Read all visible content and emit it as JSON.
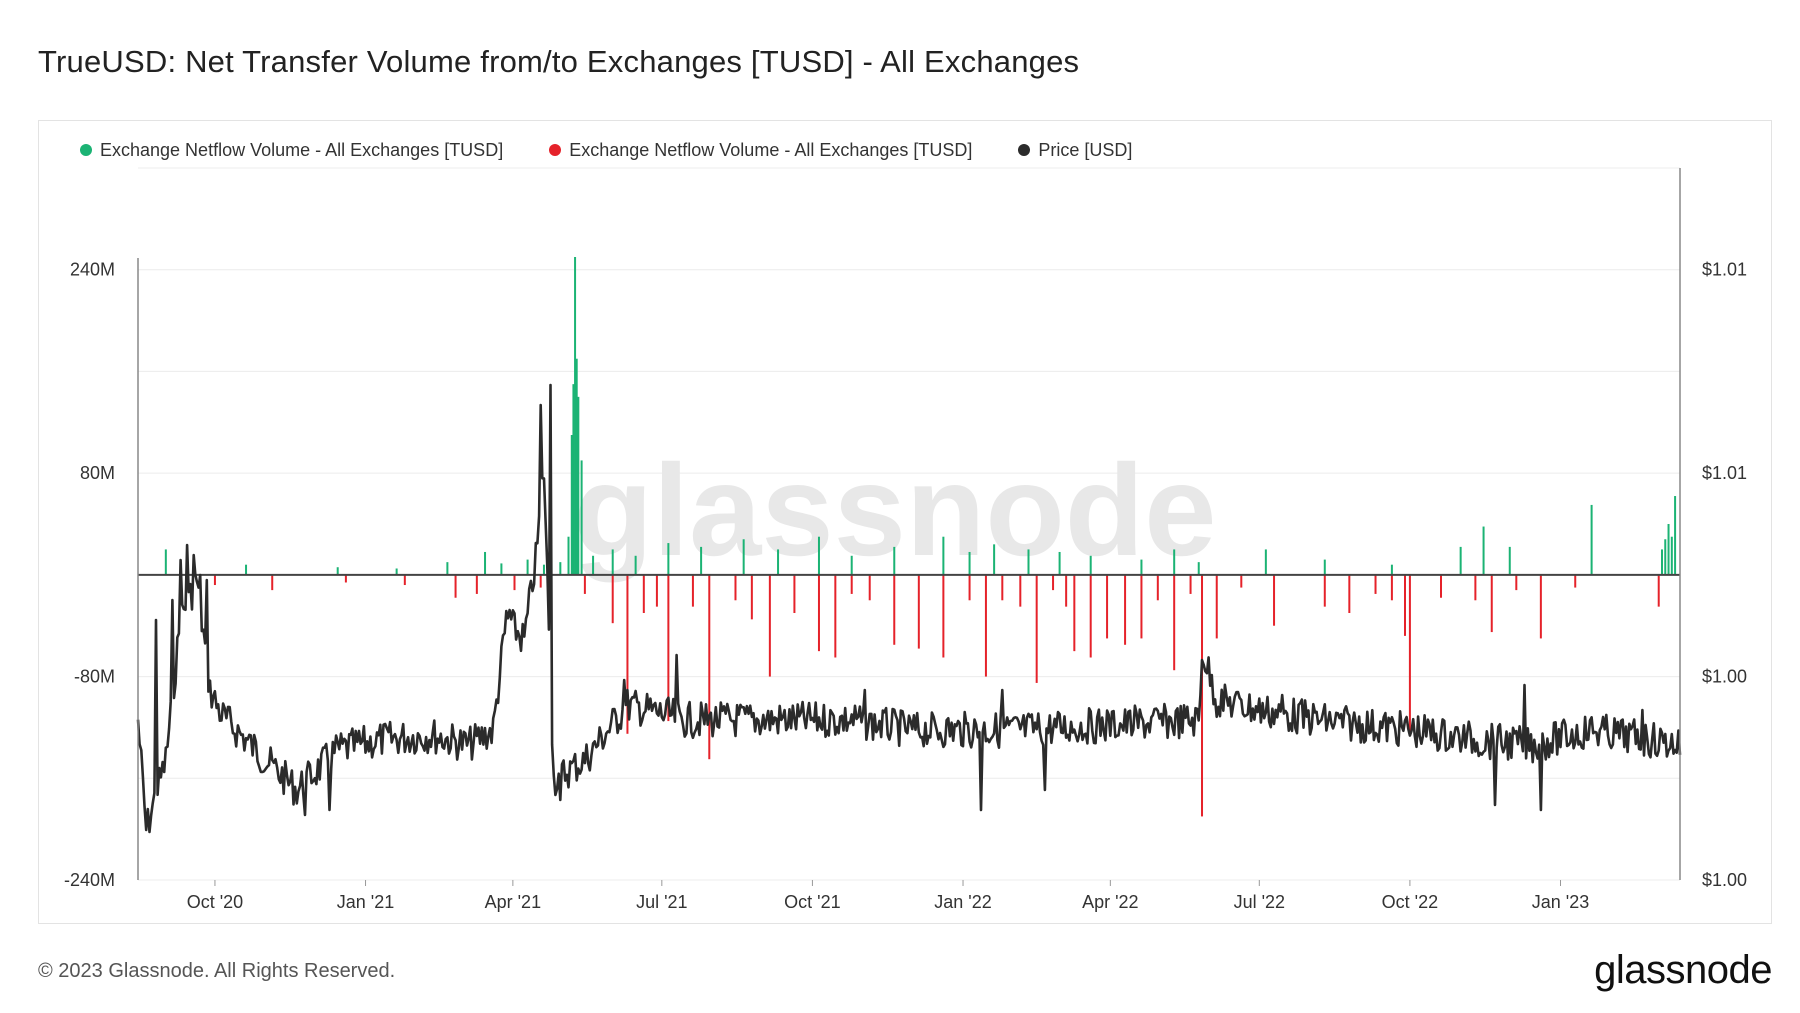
{
  "title": "TrueUSD: Net Transfer Volume from/to Exchanges [TUSD] - All Exchanges",
  "legend": [
    {
      "label": "Exchange Netflow Volume - All Exchanges [TUSD]",
      "color": "#1bb374"
    },
    {
      "label": "Exchange Netflow Volume - All Exchanges [TUSD]",
      "color": "#e5222a"
    },
    {
      "label": "Price [USD]",
      "color": "#2b2b2b"
    }
  ],
  "watermark": "glassnode",
  "footer": {
    "copyright": "© 2023 Glassnode. All Rights Reserved.",
    "logo": "glassnode"
  },
  "chart_data": {
    "type": "bar",
    "title": "TrueUSD: Net Transfer Volume from/to Exchanges [TUSD] - All Exchanges",
    "x_tick_labels": [
      "Oct '20",
      "Jan '21",
      "Apr '21",
      "Jul '21",
      "Oct '21",
      "Jan '22",
      "Apr '22",
      "Jul '22",
      "Oct '22",
      "Jan '23"
    ],
    "x_tick_dates": [
      "2020-10-01",
      "2021-01-01",
      "2021-04-01",
      "2021-07-01",
      "2021-10-01",
      "2022-01-01",
      "2022-04-01",
      "2022-07-01",
      "2022-10-01",
      "2023-01-01"
    ],
    "x_range": [
      "2020-08-15",
      "2023-03-15"
    ],
    "left_axis": {
      "tick_labels": [
        "240M",
        "80M",
        "-80M",
        "-240M"
      ],
      "tick_values": [
        240000000,
        80000000,
        -80000000,
        -240000000
      ],
      "range": [
        -240000000,
        320000000
      ],
      "unit": "TUSD"
    },
    "right_axis": {
      "tick_labels": [
        "$1.01",
        "$1.01",
        "$1.00",
        "$1.00"
      ]
    },
    "grid": true,
    "legend_position": "top-left",
    "series": [
      {
        "name": "Exchange Netflow Volume - All Exchanges [TUSD]",
        "color": "#1bb374",
        "kind": "bar",
        "note_units": "TUSD",
        "points": [
          [
            "2020-09-01",
            20000000
          ],
          [
            "2020-10-20",
            8000000
          ],
          [
            "2020-12-15",
            6000000
          ],
          [
            "2021-01-20",
            5000000
          ],
          [
            "2021-02-20",
            10000000
          ],
          [
            "2021-03-15",
            18000000
          ],
          [
            "2021-03-25",
            9000000
          ],
          [
            "2021-04-10",
            12000000
          ],
          [
            "2021-04-20",
            8000000
          ],
          [
            "2021-04-30",
            10000000
          ],
          [
            "2021-05-05",
            30000000
          ],
          [
            "2021-05-07",
            110000000
          ],
          [
            "2021-05-08",
            150000000
          ],
          [
            "2021-05-09",
            250000000
          ],
          [
            "2021-05-10",
            170000000
          ],
          [
            "2021-05-11",
            140000000
          ],
          [
            "2021-05-13",
            90000000
          ],
          [
            "2021-05-20",
            15000000
          ],
          [
            "2021-06-01",
            20000000
          ],
          [
            "2021-06-15",
            15000000
          ],
          [
            "2021-07-05",
            25000000
          ],
          [
            "2021-07-25",
            22000000
          ],
          [
            "2021-08-20",
            28000000
          ],
          [
            "2021-09-10",
            20000000
          ],
          [
            "2021-10-05",
            30000000
          ],
          [
            "2021-10-25",
            15000000
          ],
          [
            "2021-11-20",
            22000000
          ],
          [
            "2021-12-20",
            30000000
          ],
          [
            "2022-01-05",
            18000000
          ],
          [
            "2022-01-20",
            24000000
          ],
          [
            "2022-02-10",
            20000000
          ],
          [
            "2022-03-01",
            18000000
          ],
          [
            "2022-03-20",
            15000000
          ],
          [
            "2022-04-20",
            12000000
          ],
          [
            "2022-05-10",
            20000000
          ],
          [
            "2022-05-25",
            10000000
          ],
          [
            "2022-07-05",
            20000000
          ],
          [
            "2022-08-10",
            12000000
          ],
          [
            "2022-09-20",
            8000000
          ],
          [
            "2022-11-01",
            22000000
          ],
          [
            "2022-11-15",
            38000000
          ],
          [
            "2022-12-01",
            22000000
          ],
          [
            "2023-01-20",
            55000000
          ],
          [
            "2023-03-04",
            20000000
          ],
          [
            "2023-03-06",
            28000000
          ],
          [
            "2023-03-08",
            40000000
          ],
          [
            "2023-03-10",
            30000000
          ],
          [
            "2023-03-12",
            62000000
          ]
        ]
      },
      {
        "name": "Exchange Netflow Volume - All Exchanges [TUSD]",
        "color": "#e5222a",
        "kind": "bar",
        "note_units": "TUSD",
        "points": [
          [
            "2020-09-10",
            -10000000
          ],
          [
            "2020-10-01",
            -8000000
          ],
          [
            "2020-11-05",
            -12000000
          ],
          [
            "2020-12-20",
            -6000000
          ],
          [
            "2021-01-25",
            -8000000
          ],
          [
            "2021-02-25",
            -18000000
          ],
          [
            "2021-03-10",
            -15000000
          ],
          [
            "2021-04-02",
            -12000000
          ],
          [
            "2021-04-18",
            -10000000
          ],
          [
            "2021-05-15",
            -15000000
          ],
          [
            "2021-06-01",
            -38000000
          ],
          [
            "2021-06-10",
            -125000000
          ],
          [
            "2021-06-20",
            -30000000
          ],
          [
            "2021-06-28",
            -25000000
          ],
          [
            "2021-07-05",
            -115000000
          ],
          [
            "2021-07-20",
            -25000000
          ],
          [
            "2021-07-30",
            -145000000
          ],
          [
            "2021-08-15",
            -20000000
          ],
          [
            "2021-08-25",
            -35000000
          ],
          [
            "2021-09-05",
            -80000000
          ],
          [
            "2021-09-20",
            -30000000
          ],
          [
            "2021-10-05",
            -60000000
          ],
          [
            "2021-10-15",
            -65000000
          ],
          [
            "2021-10-25",
            -15000000
          ],
          [
            "2021-11-05",
            -20000000
          ],
          [
            "2021-11-20",
            -55000000
          ],
          [
            "2021-12-05",
            -58000000
          ],
          [
            "2021-12-20",
            -65000000
          ],
          [
            "2022-01-05",
            -20000000
          ],
          [
            "2022-01-15",
            -80000000
          ],
          [
            "2022-01-25",
            -20000000
          ],
          [
            "2022-02-05",
            -25000000
          ],
          [
            "2022-02-15",
            -85000000
          ],
          [
            "2022-02-25",
            -12000000
          ],
          [
            "2022-03-05",
            -25000000
          ],
          [
            "2022-03-10",
            -60000000
          ],
          [
            "2022-03-20",
            -65000000
          ],
          [
            "2022-03-30",
            -50000000
          ],
          [
            "2022-04-10",
            -55000000
          ],
          [
            "2022-04-20",
            -50000000
          ],
          [
            "2022-04-30",
            -20000000
          ],
          [
            "2022-05-10",
            -75000000
          ],
          [
            "2022-05-20",
            -15000000
          ],
          [
            "2022-05-27",
            -190000000
          ],
          [
            "2022-06-05",
            -50000000
          ],
          [
            "2022-06-20",
            -10000000
          ],
          [
            "2022-07-10",
            -40000000
          ],
          [
            "2022-08-10",
            -25000000
          ],
          [
            "2022-08-25",
            -30000000
          ],
          [
            "2022-09-10",
            -15000000
          ],
          [
            "2022-09-20",
            -20000000
          ],
          [
            "2022-09-28",
            -48000000
          ],
          [
            "2022-10-01",
            -125000000
          ],
          [
            "2022-10-20",
            -18000000
          ],
          [
            "2022-11-10",
            -20000000
          ],
          [
            "2022-11-20",
            -45000000
          ],
          [
            "2022-12-05",
            -12000000
          ],
          [
            "2022-12-20",
            -50000000
          ],
          [
            "2023-01-10",
            -10000000
          ],
          [
            "2023-03-02",
            -25000000
          ]
        ]
      },
      {
        "name": "Price [USD]",
        "color": "#2b2b2b",
        "kind": "line"
      }
    ]
  }
}
